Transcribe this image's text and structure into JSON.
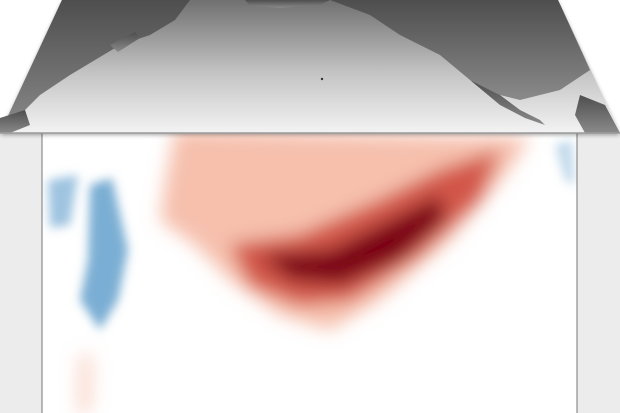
{
  "colors": {
    "map_surface_top": "#6f6f6f",
    "map_surface_bottom": "#f2f2f2",
    "land": "#5c5c5c",
    "section_background": "#ffffff",
    "side_wall": "#ebebeb",
    "warm_anomaly_light": "#f4b59f",
    "warm_anomaly_mid": "#d2574a",
    "warm_anomaly_dark": "#7b0019",
    "cool_anomaly": "#4f93c6"
  },
  "icons": {
    "map_plane": "pacific-ocean-map",
    "section": "subsurface-temperature-anomaly-section"
  }
}
